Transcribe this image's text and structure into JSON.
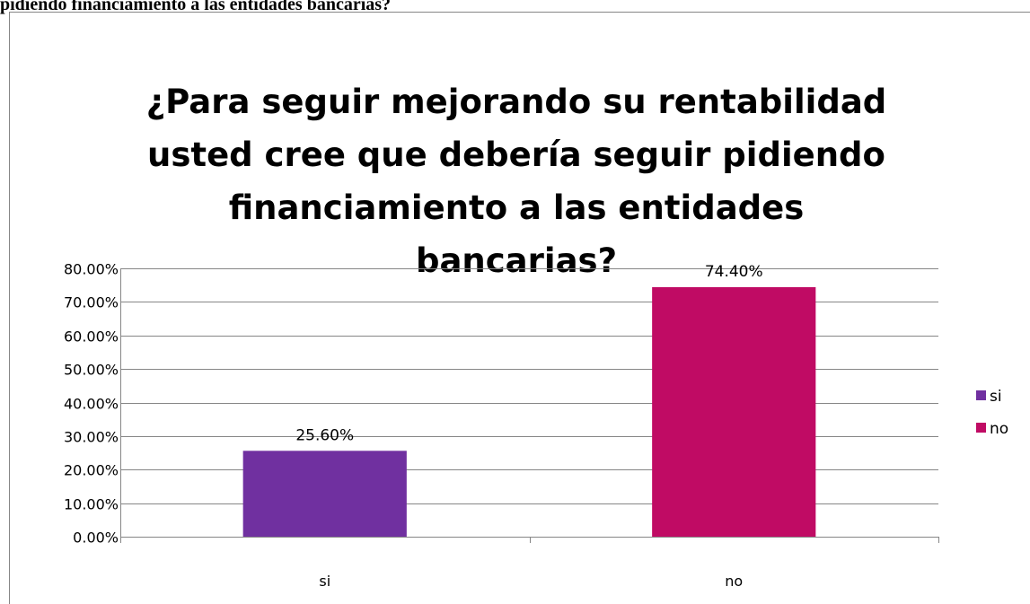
{
  "header_text": "pidiendo financiamiento a las entidades bancarias?",
  "chart_data": {
    "type": "bar",
    "title": "¿Para seguir mejorando su rentabilidad usted cree que debería seguir pidiendo financiamiento a las entidades bancarias?",
    "categories": [
      "si",
      "no"
    ],
    "series": [
      {
        "name": "si",
        "values": [
          25.6,
          null
        ],
        "color": "#7030a0"
      },
      {
        "name": "no",
        "values": [
          null,
          74.4
        ],
        "color": "#c00b64"
      }
    ],
    "data_labels": [
      "25.60%",
      "74.40%"
    ],
    "ylim": [
      0,
      80
    ],
    "ytick_values": [
      0,
      10,
      20,
      30,
      40,
      50,
      60,
      70,
      80
    ],
    "ytick_labels": [
      "0.00%",
      "10.00%",
      "20.00%",
      "30.00%",
      "40.00%",
      "50.00%",
      "60.00%",
      "70.00%",
      "80.00%"
    ],
    "xlabel": "",
    "ylabel": "",
    "grid": true,
    "legend": {
      "position": "right",
      "entries": [
        "si",
        "no"
      ]
    }
  }
}
